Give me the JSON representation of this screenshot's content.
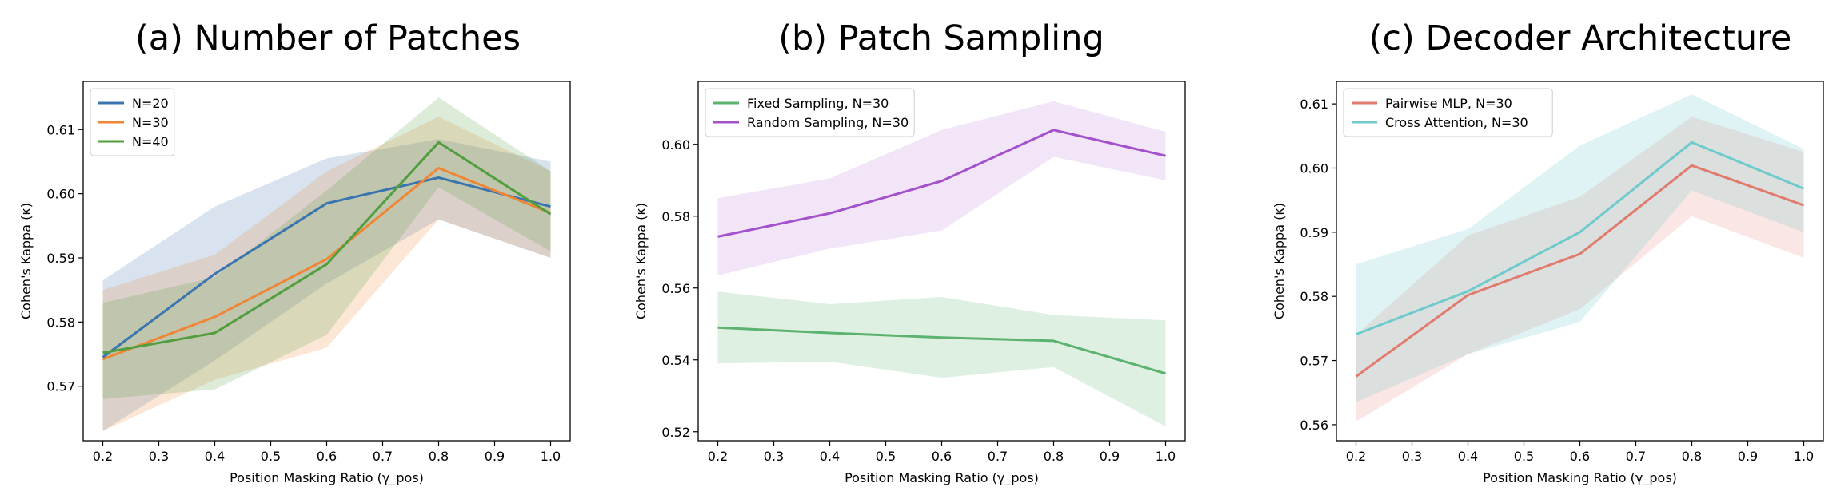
{
  "chart_data": [
    {
      "type": "line",
      "title": "(a) Number of Patches",
      "xlabel": "Position Masking Ratio (γ_pos)",
      "ylabel": "Cohen's Kappa (κ)",
      "x": [
        0.2,
        0.4,
        0.6,
        0.8,
        1.0
      ],
      "xticks": [
        "0.2",
        "0.3",
        "0.4",
        "0.5",
        "0.6",
        "0.7",
        "0.8",
        "0.9",
        "1.0"
      ],
      "xlim": [
        0.165,
        1.035
      ],
      "ylim": [
        0.5615,
        0.6175
      ],
      "yticks": [
        "0.57",
        "0.58",
        "0.59",
        "0.60",
        "0.61"
      ],
      "legend": "upper-left",
      "series": [
        {
          "name": "N=20",
          "color": "#3b75af",
          "fill_opacity": 0.2,
          "values": [
            0.5745,
            0.5875,
            0.5985,
            0.6025,
            0.598
          ],
          "lower": [
            0.563,
            0.574,
            0.586,
            0.596,
            0.59
          ],
          "upper": [
            0.5865,
            0.598,
            0.6055,
            0.6085,
            0.605
          ]
        },
        {
          "name": "N=30",
          "color": "#ef8636",
          "fill_opacity": 0.2,
          "values": [
            0.5742,
            0.5808,
            0.5898,
            0.604,
            0.597
          ],
          "lower": [
            0.563,
            0.571,
            0.576,
            0.596,
            0.59
          ],
          "upper": [
            0.585,
            0.5905,
            0.6035,
            0.612,
            0.6035
          ]
        },
        {
          "name": "N=40",
          "color": "#519e3e",
          "fill_opacity": 0.2,
          "values": [
            0.5752,
            0.5783,
            0.589,
            0.608,
            0.5968
          ],
          "lower": [
            0.568,
            0.5695,
            0.578,
            0.601,
            0.591
          ],
          "upper": [
            0.583,
            0.587,
            0.6005,
            0.615,
            0.6035
          ]
        }
      ]
    },
    {
      "type": "line",
      "title": "(b) Patch Sampling",
      "xlabel": "Position Masking Ratio (γ_pos)",
      "ylabel": "Cohen's Kappa (κ)",
      "x": [
        0.2,
        0.4,
        0.6,
        0.8,
        1.0
      ],
      "xticks": [
        "0.2",
        "0.3",
        "0.4",
        "0.5",
        "0.6",
        "0.7",
        "0.8",
        "0.9",
        "1.0"
      ],
      "xlim": [
        0.165,
        1.035
      ],
      "ylim": [
        0.5175,
        0.6175
      ],
      "yticks": [
        "0.52",
        "0.54",
        "0.56",
        "0.58",
        "0.60"
      ],
      "legend": "upper-left",
      "series": [
        {
          "name": "Fixed Sampling, N=30",
          "color": "#5cb26f",
          "fill_opacity": 0.2,
          "values": [
            0.549,
            0.5475,
            0.5462,
            0.5453,
            0.5362
          ],
          "lower": [
            0.539,
            0.5395,
            0.535,
            0.538,
            0.5215
          ],
          "upper": [
            0.559,
            0.5555,
            0.5575,
            0.5525,
            0.551
          ]
        },
        {
          "name": "Random Sampling, N=30",
          "color": "#a452cc",
          "fill_opacity": 0.15,
          "values": [
            0.5743,
            0.5808,
            0.5898,
            0.604,
            0.5968
          ],
          "lower": [
            0.5635,
            0.571,
            0.576,
            0.5965,
            0.59
          ],
          "upper": [
            0.585,
            0.5905,
            0.604,
            0.612,
            0.6035
          ]
        }
      ]
    },
    {
      "type": "line",
      "title": "(c) Decoder Architecture",
      "xlabel": "Position Masking Ratio (γ_pos)",
      "ylabel": "Cohen's Kappa (κ)",
      "x": [
        0.2,
        0.4,
        0.6,
        0.8,
        1.0
      ],
      "xticks": [
        "0.2",
        "0.3",
        "0.4",
        "0.5",
        "0.6",
        "0.7",
        "0.8",
        "0.9",
        "1.0"
      ],
      "xlim": [
        0.165,
        1.035
      ],
      "ylim": [
        0.5575,
        0.6135
      ],
      "yticks": [
        "0.56",
        "0.57",
        "0.58",
        "0.59",
        "0.60",
        "0.61"
      ],
      "legend": "upper-left",
      "series": [
        {
          "name": "Pairwise MLP, N=30",
          "color": "#e17b6e",
          "fill_opacity": 0.18,
          "values": [
            0.5675,
            0.5802,
            0.5866,
            0.6004,
            0.5942
          ],
          "lower": [
            0.5605,
            0.571,
            0.578,
            0.5925,
            0.586
          ],
          "upper": [
            0.574,
            0.5895,
            0.5955,
            0.608,
            0.6025
          ]
        },
        {
          "name": "Cross Attention, N=30",
          "color": "#6fcacc",
          "fill_opacity": 0.22,
          "values": [
            0.5741,
            0.5808,
            0.59,
            0.604,
            0.5968
          ],
          "lower": [
            0.5635,
            0.571,
            0.576,
            0.5965,
            0.59
          ],
          "upper": [
            0.585,
            0.5905,
            0.6035,
            0.6115,
            0.603
          ]
        }
      ]
    }
  ]
}
